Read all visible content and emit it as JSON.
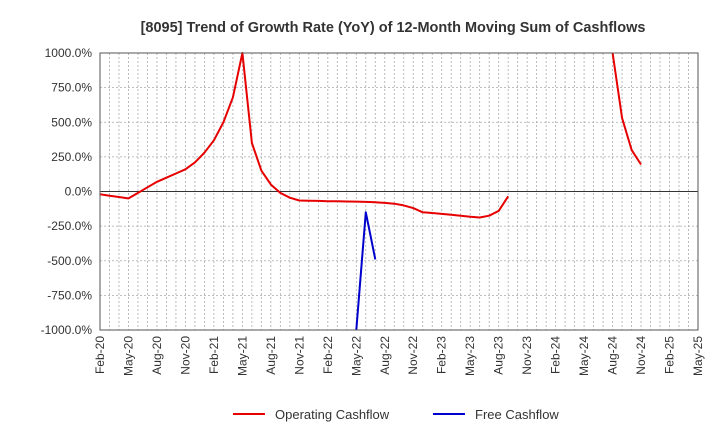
{
  "chart_data": {
    "type": "line",
    "title": "[8095]  Trend of Growth Rate (YoY) of 12-Month Moving Sum of Cashflows",
    "xlabel": "",
    "ylabel": "",
    "ylim": [
      -1000,
      1000
    ],
    "x_range": [
      "2020-02",
      "2025-05"
    ],
    "y_ticks": [
      1000,
      750,
      500,
      250,
      0,
      -250,
      -500,
      -750,
      -1000
    ],
    "y_tick_labels": [
      "1000.0%",
      "750.0%",
      "500.0%",
      "250.0%",
      "0.0%",
      "-250.0%",
      "-500.0%",
      "-750.0%",
      "-1000.0%"
    ],
    "x_ticks": [
      "2020-02",
      "2020-05",
      "2020-08",
      "2020-11",
      "2021-02",
      "2021-05",
      "2021-08",
      "2021-11",
      "2022-02",
      "2022-05",
      "2022-08",
      "2022-11",
      "2023-02",
      "2023-05",
      "2023-08",
      "2023-11",
      "2024-02",
      "2024-05",
      "2024-08",
      "2024-11",
      "2025-02",
      "2025-05"
    ],
    "x_tick_labels": [
      "Feb-20",
      "May-20",
      "Aug-20",
      "Nov-20",
      "Feb-21",
      "May-21",
      "Aug-21",
      "Nov-21",
      "Feb-22",
      "May-22",
      "Aug-22",
      "Nov-22",
      "Feb-23",
      "May-23",
      "Aug-23",
      "Nov-23",
      "Feb-24",
      "May-24",
      "Aug-24",
      "Nov-24",
      "Feb-25",
      "May-25"
    ],
    "grid": true,
    "legend_position": "bottom",
    "series": [
      {
        "name": "Operating Cashflow",
        "color": "#e60000",
        "segments": [
          [
            {
              "x": "2020-02",
              "y": -20
            },
            {
              "x": "2020-03",
              "y": -30
            },
            {
              "x": "2020-04",
              "y": -40
            },
            {
              "x": "2020-05",
              "y": -50
            },
            {
              "x": "2020-06",
              "y": -10
            },
            {
              "x": "2020-07",
              "y": 30
            },
            {
              "x": "2020-08",
              "y": 70
            },
            {
              "x": "2020-09",
              "y": 100
            },
            {
              "x": "2020-10",
              "y": 130
            },
            {
              "x": "2020-11",
              "y": 160
            },
            {
              "x": "2020-12",
              "y": 210
            },
            {
              "x": "2021-01",
              "y": 280
            },
            {
              "x": "2021-02",
              "y": 370
            },
            {
              "x": "2021-03",
              "y": 500
            },
            {
              "x": "2021-04",
              "y": 680
            },
            {
              "x": "2021-05",
              "y": 1000
            },
            {
              "x": "2021-06",
              "y": 350
            },
            {
              "x": "2021-07",
              "y": 150
            },
            {
              "x": "2021-08",
              "y": 50
            },
            {
              "x": "2021-09",
              "y": -10
            },
            {
              "x": "2021-10",
              "y": -45
            },
            {
              "x": "2021-11",
              "y": -65
            },
            {
              "x": "2021-12",
              "y": -67
            },
            {
              "x": "2022-01",
              "y": -68
            },
            {
              "x": "2022-02",
              "y": -70
            },
            {
              "x": "2022-03",
              "y": -70
            },
            {
              "x": "2022-04",
              "y": -72
            },
            {
              "x": "2022-05",
              "y": -73
            },
            {
              "x": "2022-06",
              "y": -75
            },
            {
              "x": "2022-07",
              "y": -78
            },
            {
              "x": "2022-08",
              "y": -82
            },
            {
              "x": "2022-09",
              "y": -88
            },
            {
              "x": "2022-10",
              "y": -100
            },
            {
              "x": "2022-11",
              "y": -120
            },
            {
              "x": "2022-12",
              "y": -150
            },
            {
              "x": "2023-01",
              "y": -155
            },
            {
              "x": "2023-02",
              "y": -162
            },
            {
              "x": "2023-03",
              "y": -168
            },
            {
              "x": "2023-04",
              "y": -175
            },
            {
              "x": "2023-05",
              "y": -182
            },
            {
              "x": "2023-06",
              "y": -188
            },
            {
              "x": "2023-07",
              "y": -175
            },
            {
              "x": "2023-08",
              "y": -140
            },
            {
              "x": "2023-09",
              "y": -35
            }
          ],
          [
            {
              "x": "2024-08",
              "y": 1000
            },
            {
              "x": "2024-09",
              "y": 530
            },
            {
              "x": "2024-10",
              "y": 300
            },
            {
              "x": "2024-11",
              "y": 195
            }
          ]
        ]
      },
      {
        "name": "Free Cashflow",
        "color": "#0000cc",
        "segments": [
          [
            {
              "x": "2022-05",
              "y": -1000
            },
            {
              "x": "2022-06",
              "y": -150
            },
            {
              "x": "2022-07",
              "y": -490
            }
          ]
        ]
      }
    ]
  }
}
